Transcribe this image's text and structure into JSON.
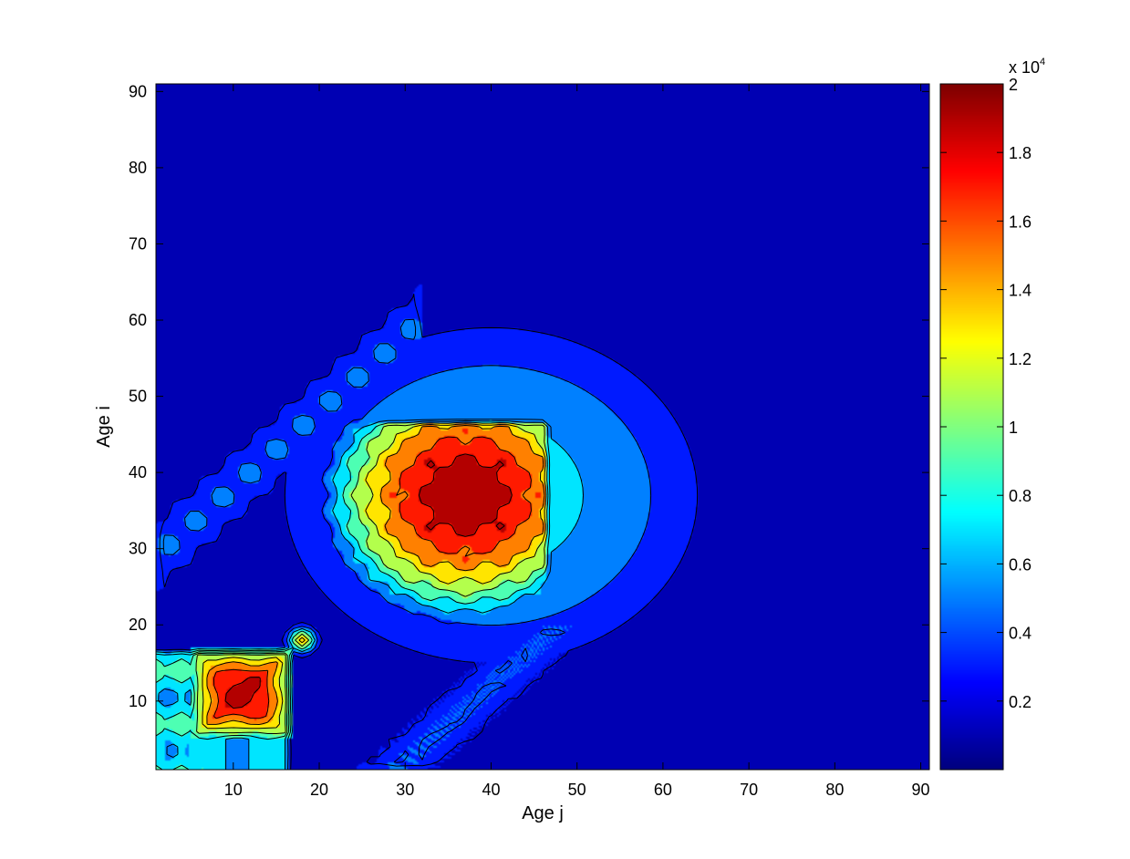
{
  "chart_data": {
    "type": "heatmap",
    "subtype": "filled-contour",
    "colormap": "jet",
    "xlabel": "Age j",
    "ylabel": "Age i",
    "xlim": [
      1,
      91
    ],
    "ylim": [
      1,
      91
    ],
    "x_ticks": [
      "10",
      "20",
      "30",
      "40",
      "50",
      "60",
      "70",
      "80",
      "90"
    ],
    "y_ticks": [
      "10",
      "20",
      "30",
      "40",
      "50",
      "60",
      "70",
      "80",
      "90"
    ],
    "colorbar": {
      "min": 0,
      "max": 20000,
      "tick_values": [
        0.2,
        0.4,
        0.6,
        0.8,
        1,
        1.2,
        1.4,
        1.6,
        1.8,
        2
      ],
      "tick_labels": [
        "0.2",
        "0.4",
        "0.6",
        "0.8",
        "1",
        "1.2",
        "1.4",
        "1.6",
        "1.8",
        "2"
      ],
      "exponent_base": "x 10",
      "exponent_power": "4"
    },
    "contour_levels": [
      2000,
      4000,
      6000,
      8000,
      10000,
      12000,
      14000,
      16000,
      18000
    ],
    "blocks": [
      {
        "x_range": [
          6,
          16
        ],
        "y_range": [
          6,
          16
        ],
        "peak": 19000
      },
      {
        "x_range": [
          18,
          45
        ],
        "y_range": [
          18,
          45
        ],
        "peak": 19500
      },
      {
        "x_range": [
          1,
          6
        ],
        "y_range": [
          1,
          16
        ],
        "peak": 9000
      }
    ],
    "grid": false
  }
}
